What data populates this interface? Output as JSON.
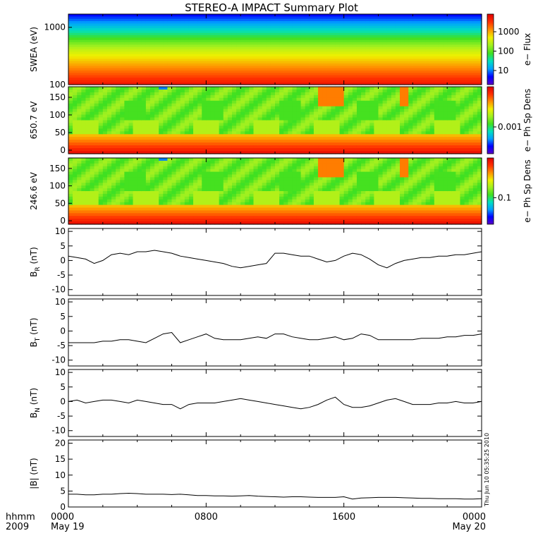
{
  "title": "STEREO-A IMPACT Summary Plot",
  "x_axis": {
    "row1_label": "hhmm",
    "row2_label": "2009",
    "ticks": [
      {
        "hour": 0,
        "time": "0000",
        "date": "May 19"
      },
      {
        "hour": 8,
        "time": "0800",
        "date": ""
      },
      {
        "hour": 16,
        "time": "1600",
        "date": ""
      },
      {
        "hour": 24,
        "time": "0000",
        "date": "May 20"
      }
    ],
    "range_hours": [
      0,
      24
    ]
  },
  "timestamp": "Thu Jun 10 05:35:25 2010",
  "colors": {
    "colormap": [
      "#5a00c8",
      "#0000ff",
      "#00a0ff",
      "#00e0c0",
      "#40e020",
      "#a0f020",
      "#f0f000",
      "#ff9000",
      "#ff3000",
      "#e00000"
    ]
  },
  "chart_data": [
    {
      "type": "heatmap",
      "ylabel": "SWEA (eV)",
      "ylog": true,
      "ylim": [
        100,
        1700
      ],
      "yticks": [
        "1000",
        "100"
      ],
      "colorbar": {
        "label": "e− Flux",
        "ticks": [
          "1000",
          "100",
          "10"
        ]
      },
      "description_levels": [
        {
          "energy_eV": 100,
          "level": 0.92
        },
        {
          "energy_eV": 150,
          "level": 0.85
        },
        {
          "energy_eV": 250,
          "level": 0.72
        },
        {
          "energy_eV": 400,
          "level": 0.55
        },
        {
          "energy_eV": 700,
          "level": 0.42
        },
        {
          "energy_eV": 1000,
          "level": 0.3
        },
        {
          "energy_eV": 1500,
          "level": 0.15
        }
      ]
    },
    {
      "type": "heatmap",
      "ylabel": "650.7 eV",
      "ylim": [
        -10,
        180
      ],
      "yticks": [
        "150",
        "100",
        "50",
        "0"
      ],
      "colorbar": {
        "label": "e− Ph Sp Dens",
        "ticks": [
          "0.001"
        ]
      },
      "hot_spots_hours": [
        14.8,
        15.6,
        19.5
      ]
    },
    {
      "type": "heatmap",
      "ylabel": "246.6 eV",
      "ylim": [
        -10,
        180
      ],
      "yticks": [
        "150",
        "100",
        "50",
        "0"
      ],
      "colorbar": {
        "label": "e− Ph Sp Dens",
        "ticks": [
          "0.1"
        ]
      },
      "hot_spots_hours": [
        14.8,
        15.6,
        19.5
      ]
    },
    {
      "type": "line",
      "ylabel": "B",
      "ylabel_sub": "R",
      "yunit": " (nT)",
      "ylim": [
        -12,
        11
      ],
      "yticks": [
        10,
        5,
        0,
        -5,
        -10
      ],
      "x": [
        0,
        0.5,
        1,
        1.5,
        2,
        2.5,
        3,
        3.5,
        4,
        4.5,
        5,
        5.5,
        6,
        6.5,
        7,
        7.5,
        8,
        8.5,
        9,
        9.5,
        10,
        10.5,
        11,
        11.5,
        12,
        12.5,
        13,
        13.5,
        14,
        14.5,
        15,
        15.5,
        16,
        16.5,
        17,
        17.5,
        18,
        18.5,
        19,
        19.5,
        20,
        20.5,
        21,
        21.5,
        22,
        22.5,
        23,
        23.5,
        24
      ],
      "y": [
        1.5,
        1,
        0.5,
        -1,
        0,
        2,
        2.5,
        2,
        3,
        3,
        3.5,
        3,
        2.5,
        1.5,
        1,
        0.5,
        0,
        -0.5,
        -1,
        -2,
        -2.5,
        -2,
        -1.5,
        -1,
        2.5,
        2.5,
        2,
        1.5,
        1.5,
        0.5,
        -0.5,
        0,
        1.5,
        2.5,
        2,
        0.5,
        -1.5,
        -2.5,
        -1,
        0,
        0.5,
        1,
        1,
        1.5,
        1.5,
        2,
        2,
        2.5,
        3
      ]
    },
    {
      "type": "line",
      "ylabel": "B",
      "ylabel_sub": "T",
      "yunit": " (nT)",
      "ylim": [
        -12,
        11
      ],
      "yticks": [
        10,
        5,
        0,
        -5,
        -10
      ],
      "x": [
        0,
        0.5,
        1,
        1.5,
        2,
        2.5,
        3,
        3.5,
        4,
        4.5,
        5,
        5.5,
        6,
        6.5,
        7,
        7.5,
        8,
        8.5,
        9,
        9.5,
        10,
        10.5,
        11,
        11.5,
        12,
        12.5,
        13,
        13.5,
        14,
        14.5,
        15,
        15.5,
        16,
        16.5,
        17,
        17.5,
        18,
        18.5,
        19,
        19.5,
        20,
        20.5,
        21,
        21.5,
        22,
        22.5,
        23,
        23.5,
        24
      ],
      "y": [
        -4,
        -4,
        -4,
        -4,
        -3.5,
        -3.5,
        -3,
        -3,
        -3.5,
        -4,
        -2.5,
        -1,
        -0.5,
        -4,
        -3,
        -2,
        -1,
        -2.5,
        -3,
        -3,
        -3,
        -2.5,
        -2,
        -2.5,
        -1,
        -1,
        -2,
        -2.5,
        -3,
        -3,
        -2.5,
        -2,
        -3,
        -2.5,
        -1,
        -1.5,
        -3,
        -3,
        -3,
        -3,
        -3,
        -2.5,
        -2.5,
        -2.5,
        -2,
        -2,
        -1.5,
        -1.5,
        -1
      ]
    },
    {
      "type": "line",
      "ylabel": "B",
      "ylabel_sub": "N",
      "yunit": " (nT)",
      "ylim": [
        -12,
        11
      ],
      "yticks": [
        10,
        5,
        0,
        -5,
        -10
      ],
      "x": [
        0,
        0.5,
        1,
        1.5,
        2,
        2.5,
        3,
        3.5,
        4,
        4.5,
        5,
        5.5,
        6,
        6.5,
        7,
        7.5,
        8,
        8.5,
        9,
        9.5,
        10,
        10.5,
        11,
        11.5,
        12,
        12.5,
        13,
        13.5,
        14,
        14.5,
        15,
        15.5,
        16,
        16.5,
        17,
        17.5,
        18,
        18.5,
        19,
        19.5,
        20,
        20.5,
        21,
        21.5,
        22,
        22.5,
        23,
        23.5,
        24
      ],
      "y": [
        0,
        0.5,
        -0.5,
        0,
        0.5,
        0.5,
        0,
        -0.5,
        0.5,
        0,
        -0.5,
        -1,
        -1,
        -2.5,
        -1,
        -0.5,
        -0.5,
        -0.5,
        0,
        0.5,
        1,
        0.5,
        0,
        -0.5,
        -1,
        -1.5,
        -2,
        -2.5,
        -2,
        -1,
        0.5,
        1.5,
        -1,
        -2,
        -2,
        -1.5,
        -0.5,
        0.5,
        1,
        0,
        -1,
        -1,
        -1,
        -0.5,
        -0.5,
        0,
        -0.5,
        -0.5,
        0
      ]
    },
    {
      "type": "line",
      "ylabel": "|B|",
      "yunit": " (nT)",
      "ylim": [
        0,
        21
      ],
      "yticks": [
        20,
        15,
        10,
        5,
        0
      ],
      "x": [
        0,
        0.5,
        1,
        1.5,
        2,
        2.5,
        3,
        3.5,
        4,
        4.5,
        5,
        5.5,
        6,
        6.5,
        7,
        7.5,
        8,
        8.5,
        9,
        9.5,
        10,
        10.5,
        11,
        11.5,
        12,
        12.5,
        13,
        13.5,
        14,
        14.5,
        15,
        15.5,
        16,
        16.5,
        17,
        17.5,
        18,
        18.5,
        19,
        19.5,
        20,
        20.5,
        21,
        21.5,
        22,
        22.5,
        23,
        23.5,
        24
      ],
      "y": [
        4,
        4,
        3.8,
        3.8,
        4,
        4,
        4.2,
        4.3,
        4.2,
        4,
        4,
        4,
        3.9,
        4,
        3.8,
        3.6,
        3.6,
        3.5,
        3.5,
        3.4,
        3.5,
        3.6,
        3.4,
        3.3,
        3.2,
        3.1,
        3.2,
        3.2,
        3.1,
        3,
        3,
        3,
        3.2,
        2.5,
        2.8,
        2.9,
        3,
        3,
        3,
        2.9,
        2.8,
        2.7,
        2.7,
        2.6,
        2.6,
        2.6,
        2.5,
        2.5,
        2.6
      ]
    }
  ]
}
